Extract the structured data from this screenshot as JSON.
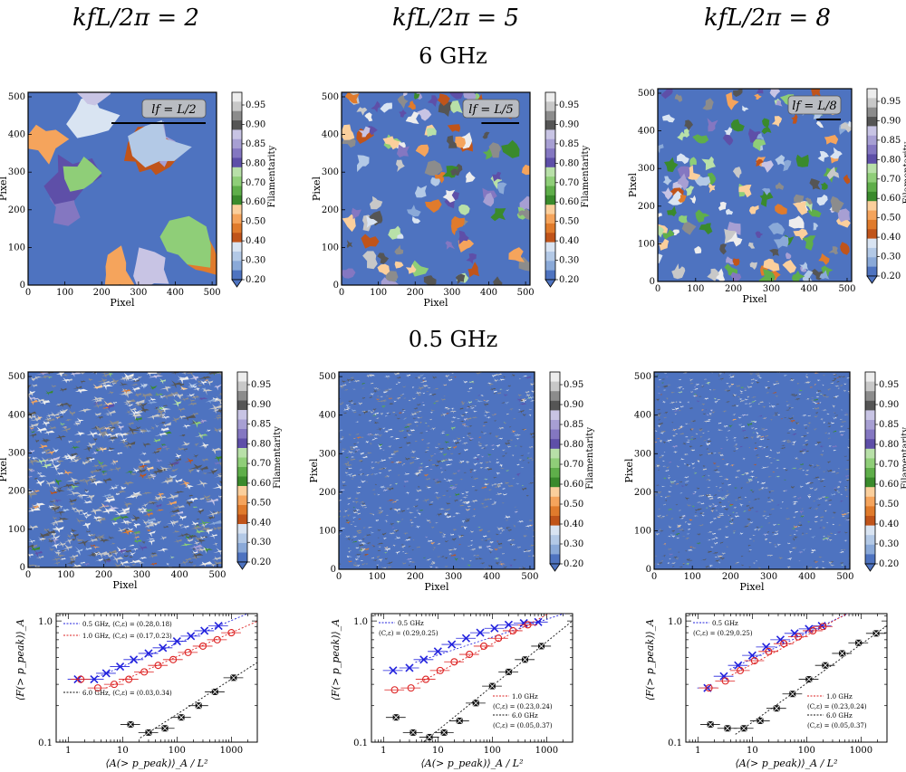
{
  "column_titles": [
    "kfL/2π = 2",
    "kfL/2π = 5",
    "kfL/2π = 8"
  ],
  "row_titles": [
    "6 GHz",
    "0.5 GHz"
  ],
  "map_axes": {
    "xlabel": "Pixel",
    "ylabel": "Pixel",
    "ticks": [
      "0",
      "100",
      "200",
      "300",
      "400",
      "500"
    ],
    "xlim": [
      0,
      512
    ],
    "ylim": [
      0,
      512
    ]
  },
  "colorbar": {
    "label": "Filamentarity",
    "ticks": [
      "0.95",
      "0.90",
      "0.85",
      "0.80",
      "0.70",
      "0.60",
      "0.50",
      "0.40",
      "0.30",
      "0.20"
    ],
    "colors": [
      "#ededed",
      "#c8c8c8",
      "#8c8c8c",
      "#555555",
      "#c8c4e4",
      "#a79fd3",
      "#8477c1",
      "#5e4fa8",
      "#b8e0a8",
      "#8fce78",
      "#5fae4a",
      "#3a8a2c",
      "#fbcf9c",
      "#f5a45c",
      "#e07b2c",
      "#c0541a",
      "#d9e4f2",
      "#b3c9e6",
      "#8aa9d8",
      "#4e73c0"
    ],
    "base_color": "#4e73c0"
  },
  "scale_labels": [
    "lf = L/2",
    "lf = L/5",
    "lf = L/8"
  ],
  "chart_data": [
    {
      "type": "scatter",
      "title": "",
      "xlabel": "⟨A(> p_peak)⟩_A / L²",
      "ylabel": "⟨F(> p_peak)⟩_A",
      "xscale": "log",
      "yscale": "log",
      "xlim": [
        0.6,
        3000
      ],
      "ylim": [
        0.1,
        1.15
      ],
      "xticks": [
        "1",
        "10",
        "100",
        "1000"
      ],
      "yticks": [
        "0.1",
        "1.0"
      ],
      "series": [
        {
          "name": "0.5 GHz",
          "color": "#2222dd",
          "marker": "x",
          "x": [
            1.5,
            3,
            5,
            9,
            16,
            30,
            55,
            100,
            180,
            320,
            580
          ],
          "y": [
            0.33,
            0.33,
            0.37,
            0.42,
            0.48,
            0.54,
            0.6,
            0.68,
            0.75,
            0.83,
            0.91
          ]
        },
        {
          "name": "1.0 GHz",
          "color": "#dd2222",
          "marker": "o",
          "x": [
            1.7,
            3.5,
            7,
            13,
            25,
            45,
            85,
            160,
            300,
            550,
            1000
          ],
          "y": [
            0.33,
            0.28,
            0.3,
            0.33,
            0.38,
            0.43,
            0.48,
            0.55,
            0.62,
            0.7,
            0.8
          ]
        },
        {
          "name": "6.0 GHz",
          "color": "#111111",
          "marker": "s",
          "x": [
            14,
            30,
            60,
            120,
            250,
            500,
            1100
          ],
          "y": [
            0.14,
            0.12,
            0.13,
            0.16,
            0.2,
            0.26,
            0.34
          ]
        }
      ],
      "legend": [
        {
          "text": "0.5 GHz, (C,ε) = (0.28,0.18)",
          "color": "#2222dd"
        },
        {
          "text": "1.0 GHz, (C,ε) = (0.17,0.23)",
          "color": "#dd2222"
        },
        {
          "text": "6.0 GHz, (C,ε) = (0.03,0.34)",
          "color": "#111111"
        }
      ]
    },
    {
      "type": "scatter",
      "title": "",
      "xlabel": "⟨A(> p_peak)⟩_A / L²",
      "ylabel": "⟨F(> p_peak)⟩_A",
      "xscale": "log",
      "yscale": "log",
      "xlim": [
        0.6,
        3000
      ],
      "ylim": [
        0.1,
        1.15
      ],
      "xticks": [
        "1",
        "10",
        "100",
        "1000"
      ],
      "yticks": [
        "0.1",
        "1.0"
      ],
      "series": [
        {
          "name": "0.5 GHz",
          "color": "#2222dd",
          "marker": "x",
          "x": [
            1.5,
            3,
            5.5,
            10,
            18,
            33,
            60,
            110,
            200,
            380,
            700
          ],
          "y": [
            0.39,
            0.41,
            0.48,
            0.56,
            0.64,
            0.72,
            0.8,
            0.87,
            0.93,
            0.96,
            0.98
          ]
        },
        {
          "name": "1.0 GHz",
          "color": "#dd2222",
          "marker": "o",
          "x": [
            1.6,
            3.2,
            6,
            11,
            20,
            38,
            70,
            130,
            240,
            450
          ],
          "y": [
            0.27,
            0.28,
            0.33,
            0.39,
            0.46,
            0.53,
            0.62,
            0.72,
            0.83,
            0.93
          ]
        },
        {
          "name": "6.0 GHz",
          "color": "#111111",
          "marker": "s",
          "x": [
            1.7,
            3.5,
            7,
            13,
            25,
            50,
            100,
            200,
            400,
            800
          ],
          "y": [
            0.16,
            0.12,
            0.11,
            0.12,
            0.15,
            0.21,
            0.29,
            0.38,
            0.48,
            0.62
          ]
        }
      ],
      "legend": [
        {
          "text": "0.5 GHz",
          "color": "#2222dd"
        },
        {
          "text": "(C,ε) = (0.29,0.25)",
          "color": "#111111"
        },
        {
          "text": "1.0 GHz",
          "color": "#dd2222"
        },
        {
          "text": "(C,ε) = (0.23,0.24)",
          "color": "#111111"
        },
        {
          "text": "6.0 GHz",
          "color": "#111111"
        },
        {
          "text": "(C,ε) = (0.05,0.37)",
          "color": "#111111"
        }
      ]
    },
    {
      "type": "scatter",
      "title": "",
      "xlabel": "⟨A(> p_peak)⟩_A / L²",
      "ylabel": "⟨F(> p_peak)⟩_A",
      "xscale": "log",
      "yscale": "log",
      "xlim": [
        0.6,
        3000
      ],
      "ylim": [
        0.1,
        1.15
      ],
      "xticks": [
        "1",
        "10",
        "100",
        "1000"
      ],
      "yticks": [
        "0.1",
        "1.0"
      ],
      "series": [
        {
          "name": "0.5 GHz",
          "color": "#2222dd",
          "marker": "x",
          "x": [
            1.5,
            3,
            5.5,
            10,
            18,
            33,
            60,
            110,
            190
          ],
          "y": [
            0.28,
            0.35,
            0.43,
            0.52,
            0.61,
            0.7,
            0.79,
            0.86,
            0.91
          ]
        },
        {
          "name": "1.0 GHz",
          "color": "#dd2222",
          "marker": "o",
          "x": [
            1.6,
            3.2,
            6,
            11,
            20,
            38,
            70,
            130,
            200
          ],
          "y": [
            0.28,
            0.32,
            0.39,
            0.47,
            0.56,
            0.65,
            0.74,
            0.83,
            0.9
          ]
        },
        {
          "name": "6.0 GHz",
          "color": "#111111",
          "marker": "s",
          "x": [
            1.7,
            3.5,
            7,
            14,
            28,
            55,
            110,
            220,
            450,
            900,
            1900
          ],
          "y": [
            0.14,
            0.13,
            0.13,
            0.15,
            0.19,
            0.25,
            0.33,
            0.43,
            0.54,
            0.66,
            0.79
          ]
        }
      ],
      "legend": [
        {
          "text": "0.5 GHz",
          "color": "#2222dd"
        },
        {
          "text": "(C,ε) = (0.29,0.25)",
          "color": "#111111"
        },
        {
          "text": "1.0 GHz",
          "color": "#dd2222"
        },
        {
          "text": "(C,ε) = (0.23,0.24)",
          "color": "#111111"
        },
        {
          "text": "6.0 GHz",
          "color": "#111111"
        },
        {
          "text": "(C,ε) = (0.05,0.37)",
          "color": "#111111"
        }
      ]
    }
  ]
}
